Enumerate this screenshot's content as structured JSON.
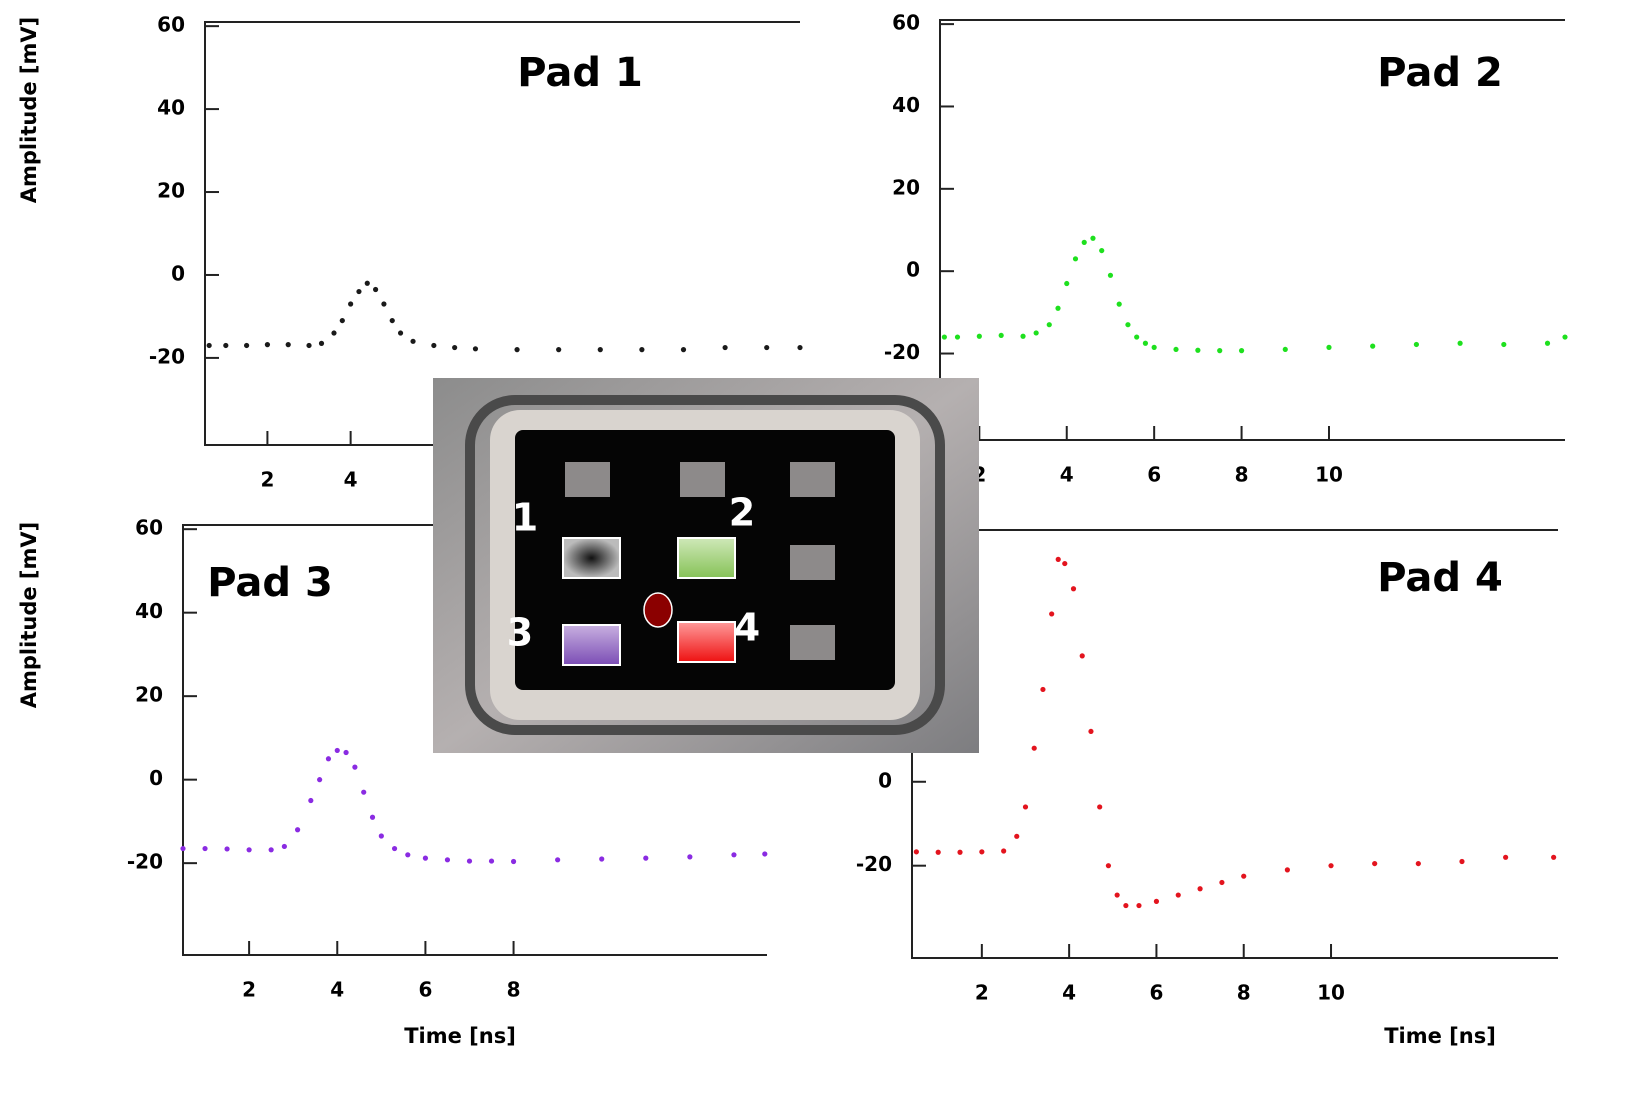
{
  "chart_data": [
    {
      "type": "scatter",
      "title": "Pad 1",
      "ylabel": "Amplitude [mV]",
      "color": "#1a1a1a",
      "xlim": [
        0.5,
        14.8
      ],
      "xticks": [
        2,
        4
      ],
      "ylim": [
        -41,
        61
      ],
      "yticks": [
        60,
        40,
        20,
        0,
        -20
      ],
      "x": [
        0.6,
        1,
        1.5,
        2,
        2.5,
        3,
        3.3,
        3.6,
        3.8,
        4,
        4.2,
        4.4,
        4.6,
        4.8,
        5,
        5.2,
        5.5,
        6,
        6.5,
        7,
        8,
        9,
        10,
        11,
        12,
        13,
        14,
        14.8
      ],
      "values": [
        -17,
        -17,
        -17,
        -16.8,
        -16.8,
        -17,
        -16.5,
        -14,
        -11,
        -7,
        -4,
        -2,
        -3.5,
        -7,
        -11,
        -14,
        -16,
        -17,
        -17.5,
        -17.8,
        -18,
        -18,
        -18,
        -18,
        -18,
        -17.5,
        -17.5,
        -17.5
      ]
    },
    {
      "type": "scatter",
      "title": "Pad 2",
      "color": "#1ee01e",
      "xlim": [
        1.1,
        15.4
      ],
      "xticks": [
        2,
        4,
        6,
        8,
        10
      ],
      "ylim": [
        -41,
        61
      ],
      "yticks": [
        60,
        40,
        20,
        0,
        -20
      ],
      "x": [
        1.2,
        1.5,
        2,
        2.5,
        3,
        3.3,
        3.6,
        3.8,
        4,
        4.2,
        4.4,
        4.6,
        4.8,
        5,
        5.2,
        5.4,
        5.6,
        5.8,
        6,
        6.5,
        7,
        7.5,
        8,
        9,
        10,
        11,
        12,
        13,
        14,
        15,
        15.4
      ],
      "values": [
        -16,
        -16,
        -15.8,
        -15.6,
        -15.8,
        -15,
        -13,
        -9,
        -3,
        3,
        7,
        8,
        5,
        -1,
        -8,
        -13,
        -16,
        -17.5,
        -18.5,
        -19,
        -19.2,
        -19.3,
        -19.3,
        -19,
        -18.5,
        -18.2,
        -17.8,
        -17.5,
        -17.8,
        -17.5,
        -16
      ]
    },
    {
      "type": "scatter",
      "title": "Pad 3",
      "ylabel": "Amplitude [mV]",
      "xlabel": "Time [ns]",
      "color": "#8a2be2",
      "xlim": [
        0.5,
        13.75
      ],
      "xticks": [
        2,
        4,
        6,
        8
      ],
      "ylim": [
        -42,
        61
      ],
      "yticks": [
        60,
        40,
        20,
        0,
        -20
      ],
      "x": [
        0.5,
        1,
        1.5,
        2,
        2.5,
        2.8,
        3.1,
        3.4,
        3.6,
        3.8,
        4,
        4.2,
        4.4,
        4.6,
        4.8,
        5,
        5.3,
        5.6,
        6,
        6.5,
        7,
        7.5,
        8,
        9,
        10,
        11,
        12,
        13,
        13.7
      ],
      "values": [
        -16.5,
        -16.5,
        -16.6,
        -16.8,
        -16.8,
        -16,
        -12,
        -5,
        0,
        5,
        7,
        6.5,
        3,
        -3,
        -9,
        -13.5,
        -16.5,
        -18,
        -18.8,
        -19.2,
        -19.5,
        -19.5,
        -19.6,
        -19.2,
        -19,
        -18.8,
        -18.5,
        -18,
        -17.8
      ]
    },
    {
      "type": "scatter",
      "title": "Pad 4",
      "xlabel": "Time [ns]",
      "color": "#e3141e",
      "xlim": [
        0.4,
        15.2
      ],
      "xticks": [
        2,
        4,
        6,
        8,
        10
      ],
      "ylim": [
        -42,
        60
      ],
      "yticks": [
        0,
        -20
      ],
      "x": [
        0.5,
        1,
        1.5,
        2,
        2.5,
        2.8,
        3.0,
        3.2,
        3.4,
        3.6,
        3.75,
        3.9,
        4.1,
        4.3,
        4.5,
        4.7,
        4.9,
        5.1,
        5.3,
        5.6,
        6,
        6.5,
        7,
        7.5,
        8,
        9,
        10,
        11,
        12,
        13,
        14,
        15.1
      ],
      "values": [
        -16.7,
        -16.8,
        -16.8,
        -16.7,
        -16.5,
        -13,
        -6,
        8,
        22,
        40,
        53,
        52,
        46,
        30,
        12,
        -6,
        -20,
        -27,
        -29.5,
        -29.5,
        -28.5,
        -27,
        -25.5,
        -24,
        -22.5,
        -21,
        -20,
        -19.5,
        -19.5,
        -19,
        -18,
        -18
      ]
    }
  ],
  "sensor_labels": [
    "1",
    "2",
    "3",
    "4"
  ]
}
